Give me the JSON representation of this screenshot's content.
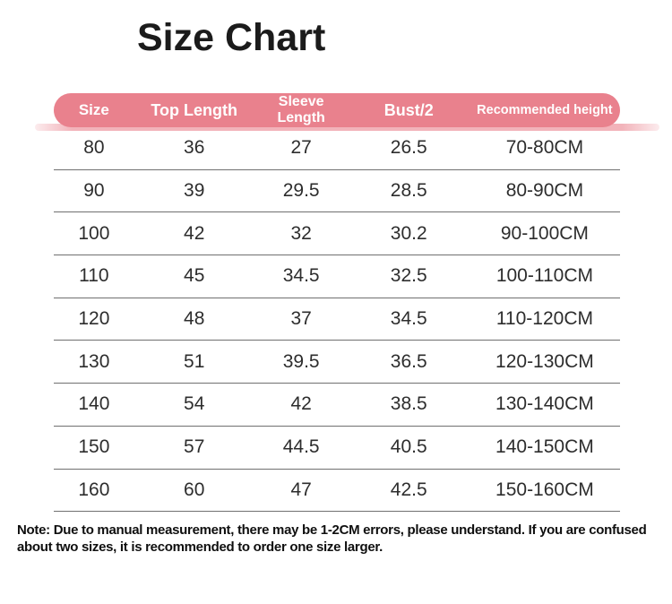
{
  "title": "Size Chart",
  "chart_data": {
    "type": "table",
    "title": "Size Chart",
    "columns": [
      "Size",
      "Top Length",
      "Sleeve Length",
      "Bust/2",
      "Recommended height"
    ],
    "rows": [
      [
        "80",
        "36",
        "27",
        "26.5",
        "70-80CM"
      ],
      [
        "90",
        "39",
        "29.5",
        "28.5",
        "80-90CM"
      ],
      [
        "100",
        "42",
        "32",
        "30.2",
        "90-100CM"
      ],
      [
        "110",
        "45",
        "34.5",
        "32.5",
        "100-110CM"
      ],
      [
        "120",
        "48",
        "37",
        "34.5",
        "110-120CM"
      ],
      [
        "130",
        "51",
        "39.5",
        "36.5",
        "120-130CM"
      ],
      [
        "140",
        "54",
        "42",
        "38.5",
        "130-140CM"
      ],
      [
        "150",
        "57",
        "44.5",
        "40.5",
        "140-150CM"
      ],
      [
        "160",
        "60",
        "47",
        "42.5",
        "150-160CM"
      ]
    ]
  },
  "note": "Note: Due to manual measurement, there may be 1-2CM errors, please understand. If you are confused about two sizes, it is recommended to order one size larger.",
  "colors": {
    "background": "#ffffff",
    "header_bg": "#e9818d",
    "header_text": "#ffffff",
    "header_echo": "#f2b3ba",
    "body_text": "#2d2d2d",
    "divider": "#707070",
    "title": "#1b1b1b",
    "note": "#0f0f0f"
  }
}
